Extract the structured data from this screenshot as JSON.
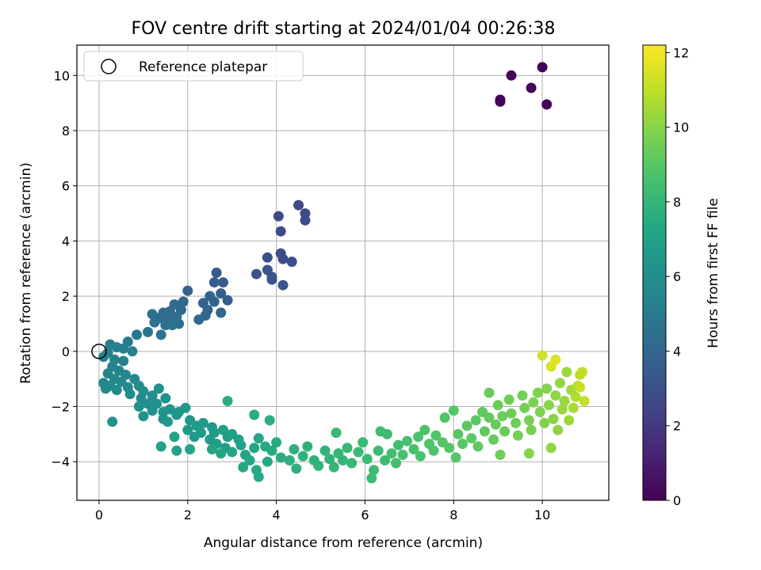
{
  "chart_data": {
    "type": "scatter",
    "title": "FOV centre drift starting at 2024/01/04 00:26:38",
    "xlabel": "Angular distance from reference (arcmin)",
    "ylabel": "Rotation from reference (arcmin)",
    "colorbar_label": "Hours from first FF file",
    "xlim": [
      -0.5,
      11.5
    ],
    "ylim": [
      -5.4,
      11.1
    ],
    "clim": [
      0,
      12.2
    ],
    "xticks": [
      0,
      2,
      4,
      6,
      8,
      10
    ],
    "yticks": [
      -4,
      -2,
      0,
      2,
      4,
      6,
      8,
      10
    ],
    "cticks": [
      0,
      2,
      4,
      6,
      8,
      10,
      12
    ],
    "grid": true,
    "colormap": "viridis",
    "legend": {
      "location": "top-left",
      "entries": [
        "Reference platepar"
      ]
    },
    "reference_point": {
      "x": 0,
      "y": 0
    },
    "points": [
      [
        9.05,
        9.05,
        0.1
      ],
      [
        9.05,
        9.12,
        0.12
      ],
      [
        9.3,
        10.0,
        0.15
      ],
      [
        10.0,
        10.3,
        0.1
      ],
      [
        9.75,
        9.55,
        0.18
      ],
      [
        10.1,
        8.95,
        0.2
      ],
      [
        4.5,
        5.3,
        2.6
      ],
      [
        4.05,
        4.9,
        2.7
      ],
      [
        4.65,
        5.0,
        2.7
      ],
      [
        4.1,
        4.35,
        2.8
      ],
      [
        4.65,
        4.75,
        2.8
      ],
      [
        4.1,
        3.55,
        2.9
      ],
      [
        4.15,
        3.35,
        2.9
      ],
      [
        3.8,
        3.4,
        3.0
      ],
      [
        4.35,
        3.25,
        3.0
      ],
      [
        3.55,
        2.8,
        3.1
      ],
      [
        3.8,
        2.95,
        3.1
      ],
      [
        3.9,
        2.7,
        3.1
      ],
      [
        3.9,
        2.6,
        3.2
      ],
      [
        4.15,
        2.4,
        3.2
      ],
      [
        2.65,
        2.85,
        3.5
      ],
      [
        2.6,
        2.5,
        3.5
      ],
      [
        2.8,
        2.5,
        3.6
      ],
      [
        2.75,
        2.1,
        3.6
      ],
      [
        2.9,
        1.85,
        3.7
      ],
      [
        2.0,
        2.2,
        3.8
      ],
      [
        2.5,
        2.0,
        3.8
      ],
      [
        2.35,
        1.75,
        3.8
      ],
      [
        2.6,
        1.8,
        3.9
      ],
      [
        2.45,
        1.5,
        3.9
      ],
      [
        2.75,
        1.4,
        4.0
      ],
      [
        2.4,
        1.3,
        4.0
      ],
      [
        2.25,
        1.15,
        4.1
      ],
      [
        1.9,
        1.8,
        4.1
      ],
      [
        1.7,
        1.7,
        4.1
      ],
      [
        1.85,
        1.5,
        4.2
      ],
      [
        1.6,
        1.45,
        4.2
      ],
      [
        1.45,
        1.4,
        4.3
      ],
      [
        1.75,
        1.25,
        4.3
      ],
      [
        1.55,
        1.15,
        4.3
      ],
      [
        1.35,
        1.2,
        4.4
      ],
      [
        1.8,
        1.0,
        4.4
      ],
      [
        1.5,
        0.95,
        4.5
      ],
      [
        1.2,
        1.35,
        4.5
      ],
      [
        1.25,
        1.05,
        4.6
      ],
      [
        1.65,
        0.95,
        4.6
      ],
      [
        1.4,
        0.6,
        4.7
      ],
      [
        1.1,
        0.7,
        4.8
      ],
      [
        0.85,
        0.6,
        4.9
      ],
      [
        0.65,
        0.35,
        5.0
      ],
      [
        0.55,
        0.1,
        5.1
      ],
      [
        0.75,
        0.0,
        5.1
      ],
      [
        0.4,
        0.15,
        5.2
      ],
      [
        0.25,
        0.25,
        5.2
      ],
      [
        0.2,
        -0.05,
        5.3
      ],
      [
        0.1,
        -0.2,
        5.3
      ],
      [
        0.35,
        -0.3,
        5.4
      ],
      [
        0.55,
        -0.35,
        5.4
      ],
      [
        0.3,
        -0.55,
        5.5
      ],
      [
        0.45,
        -0.7,
        5.5
      ],
      [
        0.2,
        -0.8,
        5.5
      ],
      [
        0.6,
        -0.85,
        5.6
      ],
      [
        0.35,
        -1.0,
        5.6
      ],
      [
        0.8,
        -1.0,
        5.6
      ],
      [
        0.5,
        -1.1,
        5.7
      ],
      [
        0.1,
        -1.15,
        5.7
      ],
      [
        0.25,
        -1.25,
        5.7
      ],
      [
        0.65,
        -1.3,
        5.8
      ],
      [
        0.9,
        -1.25,
        5.8
      ],
      [
        0.4,
        -1.4,
        5.8
      ],
      [
        0.15,
        -1.35,
        5.8
      ],
      [
        1.0,
        -1.45,
        5.9
      ],
      [
        0.7,
        -1.55,
        5.9
      ],
      [
        0.95,
        -1.7,
        5.9
      ],
      [
        1.2,
        -1.6,
        6.0
      ],
      [
        1.35,
        -1.35,
        6.0
      ],
      [
        1.1,
        -1.9,
        6.0
      ],
      [
        0.9,
        -2.0,
        6.1
      ],
      [
        1.3,
        -1.9,
        6.1
      ],
      [
        1.5,
        -1.7,
        6.1
      ],
      [
        1.2,
        -2.15,
        6.1
      ],
      [
        1.45,
        -2.2,
        6.2
      ],
      [
        1.0,
        -2.35,
        6.2
      ],
      [
        0.3,
        -2.55,
        6.2
      ],
      [
        1.6,
        -2.1,
        6.3
      ],
      [
        1.75,
        -2.3,
        6.3
      ],
      [
        1.45,
        -2.45,
        6.3
      ],
      [
        1.55,
        -2.55,
        6.4
      ],
      [
        1.8,
        -2.2,
        6.4
      ],
      [
        1.95,
        -2.05,
        6.4
      ],
      [
        2.05,
        -2.5,
        6.5
      ],
      [
        2.2,
        -2.7,
        6.5
      ],
      [
        2.0,
        -2.85,
        6.5
      ],
      [
        2.35,
        -2.6,
        6.6
      ],
      [
        2.55,
        -2.75,
        6.6
      ],
      [
        2.3,
        -2.95,
        6.6
      ],
      [
        2.6,
        -2.95,
        6.7
      ],
      [
        2.15,
        -3.1,
        6.7
      ],
      [
        2.5,
        -3.2,
        6.7
      ],
      [
        2.8,
        -2.85,
        6.8
      ],
      [
        2.9,
        -3.1,
        6.8
      ],
      [
        2.65,
        -3.35,
        6.8
      ],
      [
        3.0,
        -3.0,
        6.9
      ],
      [
        3.15,
        -3.2,
        6.9
      ],
      [
        2.85,
        -3.5,
        6.9
      ],
      [
        3.2,
        -3.4,
        7.0
      ],
      [
        1.7,
        -3.1,
        7.0
      ],
      [
        1.4,
        -3.45,
        7.0
      ],
      [
        1.75,
        -3.6,
        7.0
      ],
      [
        2.05,
        -3.55,
        7.1
      ],
      [
        2.55,
        -3.55,
        7.1
      ],
      [
        2.75,
        -3.7,
        7.1
      ],
      [
        3.0,
        -3.65,
        7.2
      ],
      [
        3.3,
        -3.75,
        7.2
      ],
      [
        3.5,
        -3.5,
        7.2
      ],
      [
        3.6,
        -3.15,
        7.3
      ],
      [
        3.4,
        -3.95,
        7.3
      ],
      [
        3.25,
        -4.2,
        7.3
      ],
      [
        3.55,
        -4.3,
        7.4
      ],
      [
        3.6,
        -4.55,
        7.4
      ],
      [
        3.8,
        -4.0,
        7.4
      ],
      [
        3.9,
        -3.6,
        7.5
      ],
      [
        3.75,
        -3.45,
        7.5
      ],
      [
        4.0,
        -3.3,
        7.5
      ],
      [
        3.5,
        -2.3,
        7.5
      ],
      [
        3.85,
        -2.5,
        7.6
      ],
      [
        2.9,
        -1.8,
        7.6
      ],
      [
        4.1,
        -3.85,
        7.6
      ],
      [
        4.3,
        -3.95,
        7.7
      ],
      [
        4.4,
        -3.55,
        7.7
      ],
      [
        4.45,
        -4.25,
        7.7
      ],
      [
        4.6,
        -3.8,
        7.8
      ],
      [
        4.7,
        -3.45,
        7.8
      ],
      [
        4.85,
        -3.95,
        7.8
      ],
      [
        4.95,
        -4.15,
        7.9
      ],
      [
        5.1,
        -3.6,
        7.9
      ],
      [
        5.2,
        -3.9,
        7.9
      ],
      [
        5.3,
        -4.2,
        8.0
      ],
      [
        5.4,
        -3.7,
        8.0
      ],
      [
        5.5,
        -3.95,
        8.0
      ],
      [
        5.35,
        -2.95,
        8.1
      ],
      [
        5.6,
        -3.5,
        8.1
      ],
      [
        5.7,
        -4.05,
        8.1
      ],
      [
        5.85,
        -3.65,
        8.2
      ],
      [
        5.95,
        -3.3,
        8.2
      ],
      [
        6.05,
        -3.9,
        8.2
      ],
      [
        6.2,
        -4.3,
        8.3
      ],
      [
        6.15,
        -4.6,
        8.3
      ],
      [
        6.3,
        -3.6,
        8.3
      ],
      [
        6.45,
        -3.95,
        8.4
      ],
      [
        6.5,
        -3.0,
        8.4
      ],
      [
        6.35,
        -2.9,
        8.4
      ],
      [
        6.6,
        -3.7,
        8.5
      ],
      [
        6.75,
        -3.4,
        8.5
      ],
      [
        6.7,
        -4.05,
        8.5
      ],
      [
        6.85,
        -3.75,
        8.6
      ],
      [
        6.95,
        -3.25,
        8.6
      ],
      [
        7.1,
        -3.55,
        8.6
      ],
      [
        7.2,
        -3.1,
        8.7
      ],
      [
        7.25,
        -3.8,
        8.7
      ],
      [
        7.35,
        -2.85,
        8.7
      ],
      [
        7.45,
        -3.35,
        8.8
      ],
      [
        7.55,
        -3.6,
        8.8
      ],
      [
        7.6,
        -3.05,
        8.8
      ],
      [
        7.8,
        -2.4,
        8.8
      ],
      [
        7.75,
        -3.3,
        8.9
      ],
      [
        7.9,
        -3.5,
        8.9
      ],
      [
        8.0,
        -2.15,
        8.9
      ],
      [
        8.1,
        -3.0,
        9.0
      ],
      [
        8.05,
        -3.85,
        9.0
      ],
      [
        8.2,
        -3.35,
        9.0
      ],
      [
        8.3,
        -2.7,
        9.1
      ],
      [
        8.4,
        -3.15,
        9.1
      ],
      [
        8.5,
        -2.5,
        9.1
      ],
      [
        8.55,
        -3.45,
        9.2
      ],
      [
        8.65,
        -2.2,
        9.2
      ],
      [
        8.7,
        -2.9,
        9.2
      ],
      [
        8.8,
        -2.4,
        9.3
      ],
      [
        8.9,
        -3.2,
        9.3
      ],
      [
        8.95,
        -2.65,
        9.3
      ],
      [
        9.0,
        -1.95,
        9.4
      ],
      [
        9.1,
        -2.35,
        9.4
      ],
      [
        9.15,
        -2.9,
        9.4
      ],
      [
        9.25,
        -1.75,
        9.5
      ],
      [
        9.3,
        -2.25,
        9.5
      ],
      [
        9.4,
        -2.6,
        9.5
      ],
      [
        9.45,
        -3.05,
        9.6
      ],
      [
        9.55,
        -1.6,
        9.6
      ],
      [
        9.6,
        -2.05,
        9.6
      ],
      [
        9.7,
        -2.5,
        9.7
      ],
      [
        9.75,
        -2.85,
        9.7
      ],
      [
        9.8,
        -1.85,
        9.8
      ],
      [
        9.9,
        -1.5,
        9.8
      ],
      [
        9.95,
        -2.2,
        9.8
      ],
      [
        10.05,
        -2.6,
        9.9
      ],
      [
        10.1,
        -1.35,
        9.9
      ],
      [
        10.15,
        -1.95,
        10.0
      ],
      [
        10.25,
        -2.45,
        10.0
      ],
      [
        10.3,
        -1.6,
        10.1
      ],
      [
        10.35,
        -2.85,
        10.1
      ],
      [
        10.4,
        -1.15,
        10.2
      ],
      [
        10.45,
        -2.1,
        10.3
      ],
      [
        10.5,
        -1.8,
        10.3
      ],
      [
        10.55,
        -0.75,
        10.4
      ],
      [
        10.6,
        -2.5,
        10.4
      ],
      [
        10.65,
        -1.4,
        10.5
      ],
      [
        10.7,
        -2.05,
        10.6
      ],
      [
        10.75,
        -1.65,
        10.7
      ],
      [
        10.8,
        -1.25,
        10.8
      ],
      [
        10.85,
        -0.85,
        10.9
      ],
      [
        10.9,
        -0.75,
        11.0
      ],
      [
        10.95,
        -1.8,
        11.1
      ],
      [
        10.0,
        -0.15,
        11.3
      ],
      [
        10.2,
        -0.55,
        11.5
      ],
      [
        8.8,
        -1.5,
        9.4
      ],
      [
        9.05,
        -3.75,
        9.5
      ],
      [
        9.7,
        -3.7,
        9.9
      ],
      [
        10.2,
        -3.5,
        10.2
      ],
      [
        10.85,
        -1.3,
        11.2
      ],
      [
        10.3,
        -0.3,
        11.6
      ]
    ]
  }
}
